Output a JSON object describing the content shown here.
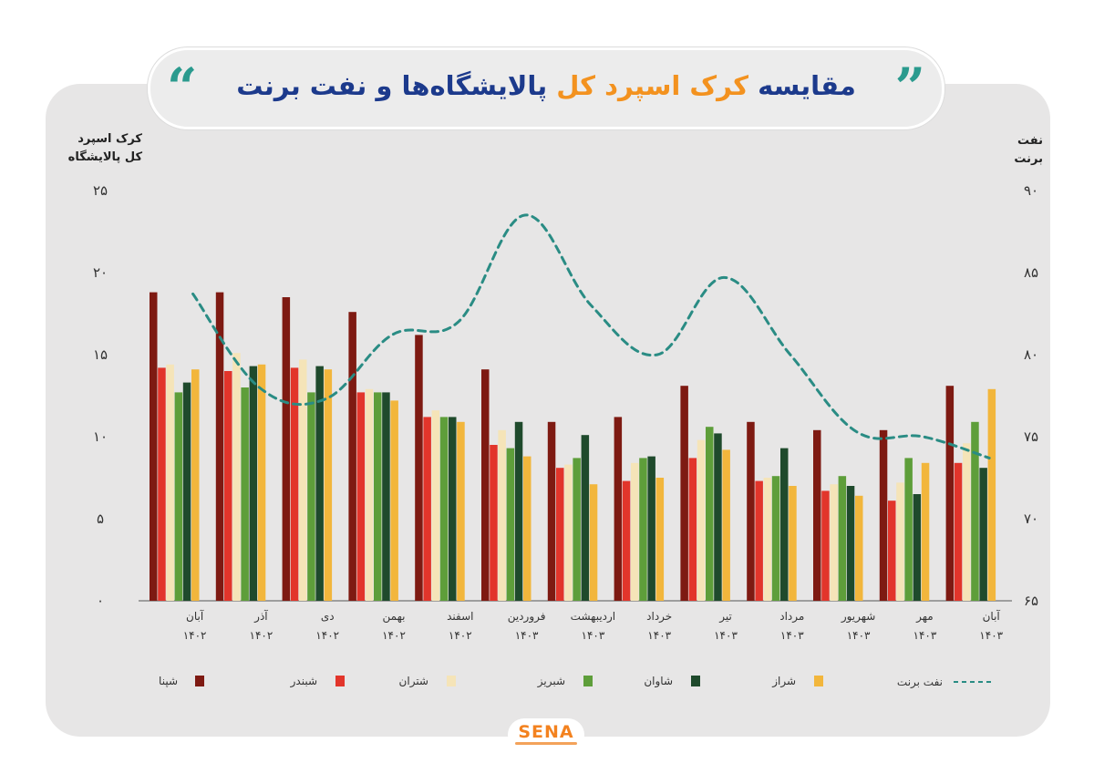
{
  "title": {
    "part_blue_start": "مقایسه",
    "part_orange": "کرک اسپرد کل",
    "part_blue_end": "پالایشگاه‌ها و نفت برنت",
    "quote_open": "“",
    "quote_close": "”"
  },
  "logo": {
    "text": "SENA"
  },
  "chart_data": {
    "type": "bar",
    "title": "مقایسه کرک اسپرد کل پالایشگاه‌ها و نفت برنت",
    "ylabel_left": [
      "کرک اسپرد",
      "کل پالایشگاه"
    ],
    "ylabel_right": [
      "نفت",
      "برنت"
    ],
    "ylim_left": [
      0,
      25
    ],
    "yticks_left": [
      "0",
      "5",
      "10",
      "15",
      "20",
      "25"
    ],
    "ylim_right": [
      65,
      90
    ],
    "yticks_right": [
      "65",
      "70",
      "75",
      "80",
      "85",
      "90"
    ],
    "categories": [
      {
        "month": "آبان",
        "year": "۱۴۰۲"
      },
      {
        "month": "آذر",
        "year": "۱۴۰۲"
      },
      {
        "month": "دی",
        "year": "۱۴۰۲"
      },
      {
        "month": "بهمن",
        "year": "۱۴۰۲"
      },
      {
        "month": "اسفند",
        "year": "۱۴۰۲"
      },
      {
        "month": "فروردین",
        "year": "۱۴۰۳"
      },
      {
        "month": "اردیبهشت",
        "year": "۱۴۰۳"
      },
      {
        "month": "خرداد",
        "year": "۱۴۰۳"
      },
      {
        "month": "تیر",
        "year": "۱۴۰۳"
      },
      {
        "month": "مرداد",
        "year": "۱۴۰۳"
      },
      {
        "month": "شهریور",
        "year": "۱۴۰۳"
      },
      {
        "month": "مهر",
        "year": "۱۴۰۳"
      },
      {
        "month": "آبان",
        "year": "۱۴۰۳"
      }
    ],
    "series": [
      {
        "name": "شپنا",
        "color": "#7e1a12",
        "values": [
          18.8,
          18.8,
          18.5,
          17.6,
          16.2,
          14.1,
          10.9,
          11.2,
          13.1,
          10.9,
          10.4,
          10.4,
          13.1
        ]
      },
      {
        "name": "شبندر",
        "color": "#e2352b",
        "values": [
          14.2,
          14.0,
          14.2,
          12.7,
          11.2,
          9.5,
          8.1,
          7.3,
          8.7,
          7.3,
          6.7,
          6.1,
          8.4
        ]
      },
      {
        "name": "شتران",
        "color": "#f5e4b8",
        "values": [
          14.4,
          15.1,
          14.7,
          12.9,
          11.6,
          10.4,
          8.3,
          8.4,
          9.8,
          7.5,
          7.1,
          7.2,
          9.6
        ]
      },
      {
        "name": "شبریز",
        "color": "#5e9e3a",
        "values": [
          12.7,
          13.0,
          12.7,
          12.7,
          11.2,
          9.3,
          8.7,
          8.7,
          10.6,
          7.6,
          7.6,
          8.7,
          10.9
        ]
      },
      {
        "name": "شاوان",
        "color": "#1f4a2c",
        "values": [
          13.3,
          14.3,
          14.3,
          12.7,
          11.2,
          10.9,
          10.1,
          8.8,
          10.2,
          9.3,
          7.0,
          6.5,
          8.1
        ]
      },
      {
        "name": "شراز",
        "color": "#f2b63c",
        "values": [
          14.1,
          14.4,
          14.1,
          12.2,
          10.9,
          8.8,
          7.1,
          7.5,
          9.2,
          7.0,
          6.4,
          8.4,
          12.9
        ]
      }
    ],
    "line_series": {
      "name": "نفت برنت",
      "color": "#2a8c84",
      "style": "dashed",
      "axis": "right",
      "values": [
        83.7,
        78.0,
        77.3,
        81.2,
        82.0,
        88.5,
        83.0,
        80.0,
        84.7,
        80.0,
        75.3,
        75.0,
        73.7
      ]
    },
    "legend_position": "bottom",
    "grid": false
  }
}
